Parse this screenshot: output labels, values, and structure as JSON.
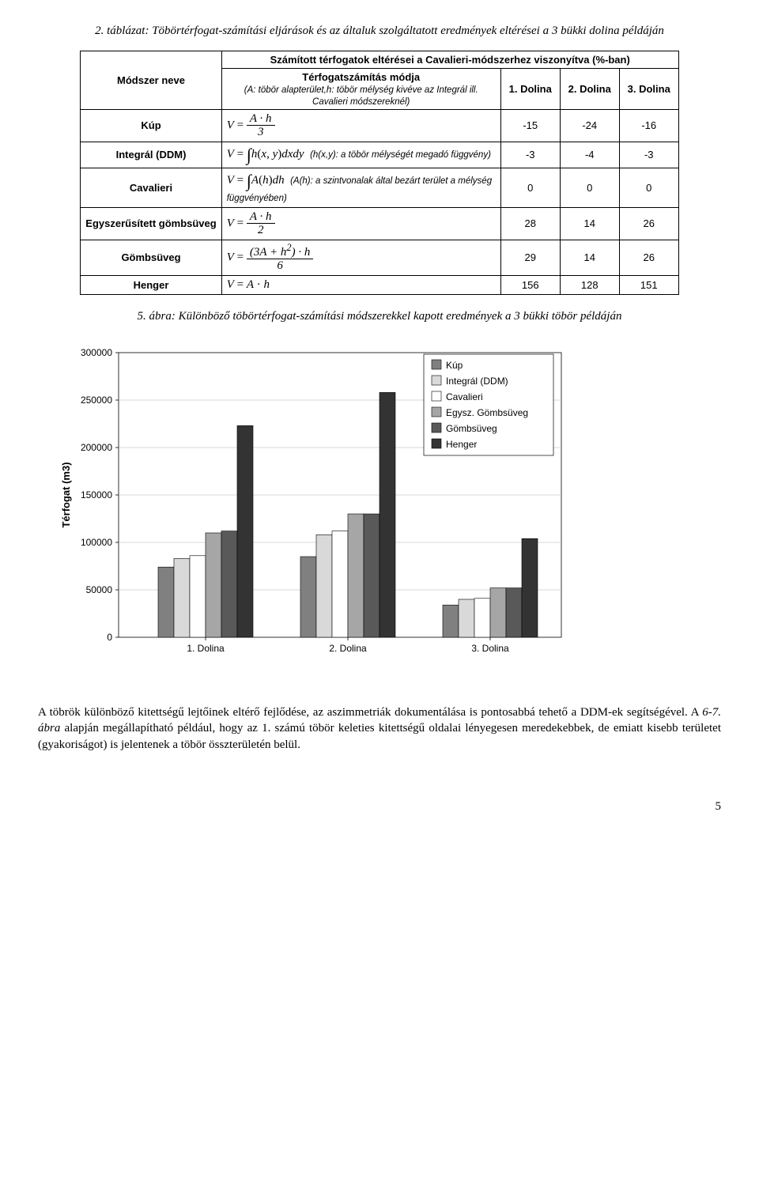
{
  "table_caption": "2. táblázat: Töbörtérfogat-számítási eljárások és az általuk szolgáltatott eredmények eltérései a 3 bükki dolina példáján",
  "table": {
    "super_header": "Számított térfogatok eltérései a Cavalieri-módszerhez viszonyítva (%-ban)",
    "headers": {
      "method": "Módszer neve",
      "formula": "Térfogatszámítás módja",
      "formula_sub": "(A: töbör alapterület,h: töbör mélység kivéve az Integrál ill. Cavalieri módszereknél)",
      "d1": "1. Dolina",
      "d2": "2. Dolina",
      "d3": "3. Dolina"
    },
    "rows": [
      {
        "method": "Kúp",
        "formula": "cone",
        "d1": "-15",
        "d2": "-24",
        "d3": "-16"
      },
      {
        "method": "Integrál (DDM)",
        "formula": "integral_ddm",
        "hint": "(h(x,y): a töbör mélységét megadó függvény)",
        "d1": "-3",
        "d2": "-4",
        "d3": "-3"
      },
      {
        "method": "Cavalieri",
        "formula": "cavalieri",
        "hint": "(A(h): a szintvonalak által bezárt terület a mélység függvényében)",
        "d1": "0",
        "d2": "0",
        "d3": "0"
      },
      {
        "method": "Egyszerűsített gömbsüveg",
        "formula": "simpl_cap",
        "d1": "28",
        "d2": "14",
        "d3": "26"
      },
      {
        "method": "Gömbsüveg",
        "formula": "cap",
        "d1": "29",
        "d2": "14",
        "d3": "26"
      },
      {
        "method": "Henger",
        "formula": "cylinder",
        "d1": "156",
        "d2": "128",
        "d3": "151"
      }
    ]
  },
  "fig_caption": "5. ábra: Különböző töbörtérfogat-számítási módszerekkel kapott eredmények a 3 bükki töbör példáján",
  "chart": {
    "type": "grouped_bar",
    "categories": [
      "1. Dolina",
      "2. Dolina",
      "3. Dolina"
    ],
    "series": [
      {
        "name": "Kúp",
        "display": "Kúp",
        "fill": "#808080",
        "values": [
          74000,
          85000,
          34000
        ]
      },
      {
        "name": "Integrál (DDM)",
        "display": "Integrál (DDM)",
        "fill": "#d9d9d9",
        "values": [
          83000,
          108000,
          40000
        ]
      },
      {
        "name": "Cavalieri",
        "display": "Cavalieri",
        "fill": "#ffffff",
        "values": [
          86000,
          112000,
          41000
        ]
      },
      {
        "name": "Egysz. Gömbsüveg",
        "display": "Egysz. Gömbsüveg",
        "fill": "#a6a6a6",
        "values": [
          110000,
          130000,
          52000
        ]
      },
      {
        "name": "Gömbsüveg",
        "display": "Gömbsüveg",
        "fill": "#595959",
        "values": [
          112000,
          130000,
          52000
        ]
      },
      {
        "name": "Henger",
        "display": "Henger",
        "fill": "#333333",
        "values": [
          223000,
          258000,
          104000
        ]
      }
    ],
    "y": {
      "min": 0,
      "max": 300000,
      "step": 50000,
      "label": "Térfogat (m3)"
    },
    "bar": {
      "width": 20,
      "gap": 0,
      "group_gap": 60
    },
    "fontsize": {
      "tick": 12,
      "axis_label": 13,
      "legend": 12
    },
    "colors": {
      "bg": "#ffffff",
      "grid": "#b0b0b0",
      "axis": "#000000"
    },
    "legend_pos": "right-top-inside"
  },
  "body": {
    "p1": "A töbrök különböző kitettségű lejtőinek eltérő fejlődése, az aszimmetriák dokumentálása is pontosabbá tehető a DDM-ek segítségével. A 6-7. ábra alapján megállapítható például, hogy az 1. számú töbör keleties kitettségű oldalai lényegesen meredekebbek, de emiatt kisebb területet (gyakoriságot) is jelentenek a töbör összterületén belül.",
    "italic_span": "6-7. ábra"
  },
  "page_number": "5"
}
